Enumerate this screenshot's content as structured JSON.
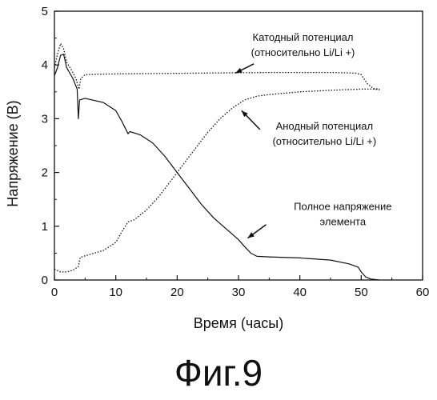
{
  "caption": "Фиг.9",
  "chart_data": {
    "type": "line",
    "xlabel": "Время (часы)",
    "ylabel": "Напряжение (В)",
    "xlim": [
      0,
      60
    ],
    "ylim": [
      0,
      5
    ],
    "xticks": [
      0,
      10,
      20,
      30,
      40,
      50,
      60
    ],
    "yticks": [
      0,
      1,
      2,
      3,
      4,
      5
    ],
    "grid": false,
    "series": [
      {
        "key": "cathode",
        "style": "dotted",
        "points": [
          [
            0,
            3.95
          ],
          [
            0.5,
            4.2
          ],
          [
            1,
            4.4
          ],
          [
            1.5,
            4.3
          ],
          [
            2,
            4.05
          ],
          [
            2.8,
            3.9
          ],
          [
            3.5,
            3.75
          ],
          [
            4,
            3.55
          ],
          [
            4.3,
            3.75
          ],
          [
            5,
            3.82
          ],
          [
            8,
            3.83
          ],
          [
            15,
            3.84
          ],
          [
            25,
            3.85
          ],
          [
            35,
            3.86
          ],
          [
            45,
            3.86
          ],
          [
            49,
            3.85
          ],
          [
            50,
            3.82
          ],
          [
            51,
            3.65
          ],
          [
            52,
            3.56
          ],
          [
            53,
            3.55
          ]
        ]
      },
      {
        "key": "full",
        "style": "solid",
        "points": [
          [
            0,
            3.8
          ],
          [
            0.5,
            3.95
          ],
          [
            1,
            4.18
          ],
          [
            1.5,
            4.2
          ],
          [
            2,
            3.95
          ],
          [
            3,
            3.75
          ],
          [
            3.7,
            3.55
          ],
          [
            3.9,
            3.0
          ],
          [
            4.1,
            3.35
          ],
          [
            5,
            3.38
          ],
          [
            8,
            3.3
          ],
          [
            10,
            3.15
          ],
          [
            11,
            2.95
          ],
          [
            12,
            2.72
          ],
          [
            12.3,
            2.76
          ],
          [
            14,
            2.7
          ],
          [
            16,
            2.55
          ],
          [
            18,
            2.3
          ],
          [
            20,
            2.0
          ],
          [
            22,
            1.7
          ],
          [
            24,
            1.4
          ],
          [
            26,
            1.15
          ],
          [
            28,
            0.95
          ],
          [
            30,
            0.75
          ],
          [
            31,
            0.62
          ],
          [
            32,
            0.5
          ],
          [
            33,
            0.44
          ],
          [
            35,
            0.43
          ],
          [
            40,
            0.41
          ],
          [
            45,
            0.37
          ],
          [
            48,
            0.3
          ],
          [
            49.5,
            0.24
          ],
          [
            50,
            0.15
          ],
          [
            50.7,
            0.06
          ],
          [
            51.5,
            0.02
          ],
          [
            53,
            0.0
          ]
        ]
      },
      {
        "key": "anode",
        "style": "dotted",
        "points": [
          [
            0,
            0.2
          ],
          [
            1,
            0.15
          ],
          [
            2,
            0.15
          ],
          [
            3,
            0.18
          ],
          [
            3.9,
            0.25
          ],
          [
            4.2,
            0.42
          ],
          [
            5,
            0.45
          ],
          [
            8,
            0.55
          ],
          [
            10,
            0.7
          ],
          [
            11,
            0.9
          ],
          [
            12,
            1.08
          ],
          [
            13,
            1.12
          ],
          [
            15,
            1.3
          ],
          [
            17,
            1.55
          ],
          [
            19,
            1.85
          ],
          [
            21,
            2.15
          ],
          [
            23,
            2.45
          ],
          [
            25,
            2.75
          ],
          [
            27,
            3.0
          ],
          [
            29,
            3.2
          ],
          [
            31,
            3.35
          ],
          [
            33,
            3.42
          ],
          [
            35,
            3.45
          ],
          [
            40,
            3.5
          ],
          [
            45,
            3.53
          ],
          [
            50,
            3.55
          ],
          [
            52,
            3.55
          ],
          [
            53,
            3.54
          ]
        ]
      }
    ],
    "annotations": [
      {
        "key": "cathode",
        "lines": [
          "Катодный потенциал",
          "(относительно Li/Li +)"
        ],
        "x": 40.5,
        "y": 4.45,
        "arrow_from": [
          32.5,
          4.02
        ],
        "arrow_to": [
          29.5,
          3.85
        ]
      },
      {
        "key": "anode",
        "lines": [
          "Анодный потенциал",
          "(относительно Li/Li +)"
        ],
        "x": 44,
        "y": 2.8,
        "arrow_from": [
          33.5,
          2.8
        ],
        "arrow_to": [
          30.5,
          3.15
        ]
      },
      {
        "key": "full",
        "lines": [
          "Полное напряжение",
          "элемента"
        ],
        "x": 47,
        "y": 1.3,
        "arrow_from": [
          34.5,
          1.03
        ],
        "arrow_to": [
          31.5,
          0.78
        ]
      }
    ]
  }
}
